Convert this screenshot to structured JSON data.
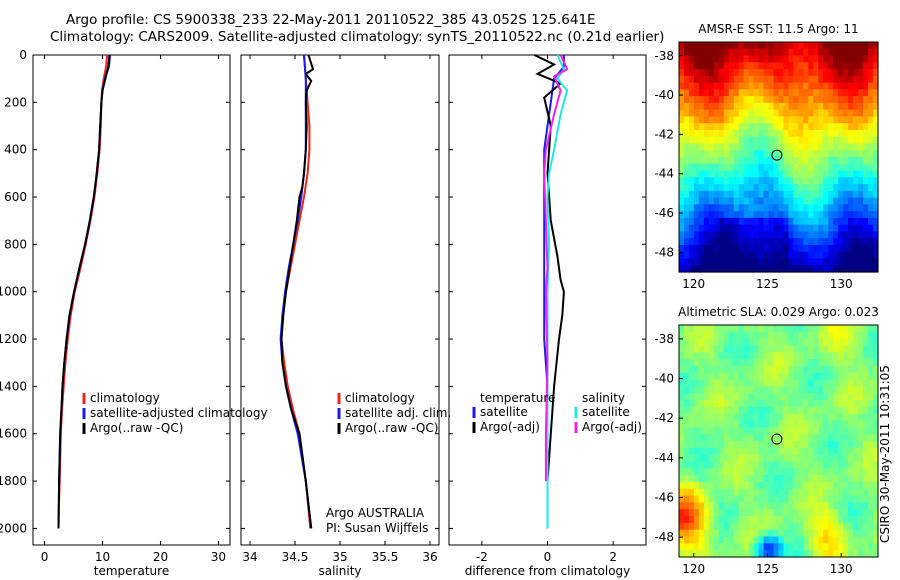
{
  "header": {
    "line1": "Argo profile: CS 5900338_233 22-May-2011 20110522_385 43.052S 125.641E",
    "line2": "Climatology: CARS2009. Satellite-adjusted climatology: synTS_20110522.nc (0.21d earlier)"
  },
  "side_label": "CSIRO 30-May-2011 10:31:05",
  "colors": {
    "red": "#e8261c",
    "blue": "#1a1aee",
    "black": "#000000",
    "cyan": "#22e6e6",
    "magenta": "#ee22ee"
  },
  "chart_data": [
    {
      "type": "line",
      "name": "temperature-profile",
      "xlabel": "temperature",
      "xlim": [
        -2,
        32
      ],
      "ylim": [
        0,
        2070
      ],
      "y_reversed": true,
      "xticks": [
        0,
        10,
        20,
        30
      ],
      "yticks": [
        0,
        200,
        400,
        600,
        800,
        1000,
        1200,
        1400,
        1600,
        1800,
        2000
      ],
      "series": [
        {
          "name": "climatology",
          "color": "red",
          "x": [
            10.8,
            10.6,
            10.2,
            9.9,
            9.8,
            9.7,
            9.5,
            9.1,
            8.6,
            7.9,
            7.1,
            6.2,
            5.2,
            4.5,
            4.0,
            3.6,
            3.3,
            3.0,
            2.8,
            2.6,
            2.5
          ],
          "y": [
            0,
            50,
            100,
            150,
            200,
            300,
            400,
            500,
            600,
            700,
            800,
            900,
            1000,
            1100,
            1200,
            1300,
            1400,
            1500,
            1600,
            1800,
            1880
          ]
        },
        {
          "name": "satellite-adjusted climatology",
          "color": "blue",
          "x": [
            11.3,
            11.1,
            10.4,
            10.0,
            9.8,
            9.6,
            9.4,
            9.0,
            8.5,
            7.8,
            7.0,
            6.0,
            5.1,
            4.3,
            3.8,
            3.4,
            3.1,
            2.9,
            2.7,
            2.5,
            2.4
          ],
          "y": [
            0,
            50,
            100,
            150,
            200,
            300,
            400,
            500,
            600,
            700,
            800,
            900,
            1000,
            1100,
            1200,
            1300,
            1400,
            1500,
            1600,
            1800,
            2000
          ]
        },
        {
          "name": "Argo(..raw -QC)",
          "color": "black",
          "x": [
            11.2,
            11.0,
            10.5,
            10.0,
            9.8,
            9.6,
            9.4,
            9.0,
            8.5,
            7.8,
            7.0,
            6.0,
            5.1,
            4.3,
            3.8,
            3.4,
            3.1,
            2.9,
            2.7,
            2.5,
            2.4
          ],
          "y": [
            0,
            50,
            100,
            150,
            200,
            300,
            400,
            500,
            600,
            700,
            800,
            900,
            1000,
            1100,
            1200,
            1300,
            1400,
            1500,
            1600,
            1800,
            2000
          ]
        }
      ],
      "legend": [
        "climatology",
        "satellite-adjusted climatology",
        "Argo(..raw -QC)"
      ]
    },
    {
      "type": "line",
      "name": "salinity-profile",
      "xlabel": "salinity",
      "xlim": [
        33.9,
        36.1
      ],
      "ylim": [
        0,
        2070
      ],
      "y_reversed": true,
      "xticks": [
        34,
        34.5,
        35,
        35.5,
        36
      ],
      "series": [
        {
          "name": "climatology",
          "color": "red",
          "x": [
            34.6,
            34.61,
            34.62,
            34.64,
            34.66,
            34.66,
            34.64,
            34.6,
            34.55,
            34.5,
            34.45,
            34.4,
            34.36,
            34.35,
            34.38,
            34.42,
            34.48,
            34.55,
            34.62,
            34.67
          ],
          "y": [
            0,
            50,
            100,
            200,
            300,
            400,
            500,
            600,
            700,
            800,
            900,
            1000,
            1100,
            1200,
            1300,
            1400,
            1500,
            1600,
            1800,
            2000
          ]
        },
        {
          "name": "satellite adj. clim.",
          "color": "blue",
          "x": [
            34.6,
            34.61,
            34.62,
            34.62,
            34.62,
            34.62,
            34.6,
            34.57,
            34.53,
            34.48,
            34.43,
            34.39,
            34.36,
            34.34,
            34.36,
            34.4,
            34.46,
            34.53,
            34.62,
            34.68
          ],
          "y": [
            0,
            50,
            100,
            200,
            300,
            400,
            500,
            600,
            700,
            800,
            900,
            1000,
            1100,
            1200,
            1300,
            1400,
            1500,
            1600,
            1800,
            2000
          ]
        },
        {
          "name": "Argo(..raw -QC)",
          "color": "black",
          "x": [
            34.65,
            34.7,
            34.62,
            34.68,
            34.63,
            34.62,
            34.63,
            34.62,
            34.6,
            34.58,
            34.55,
            34.52,
            34.48,
            34.44,
            34.4,
            34.37,
            34.35,
            34.36,
            34.4,
            34.46,
            34.55,
            34.62,
            34.68
          ],
          "y": [
            0,
            60,
            80,
            110,
            150,
            200,
            300,
            400,
            500,
            560,
            600,
            700,
            800,
            900,
            1000,
            1100,
            1200,
            1300,
            1400,
            1500,
            1600,
            1800,
            2000
          ]
        }
      ],
      "legend": [
        "climatology",
        "satellite adj. clim.",
        "Argo(..raw -QC)"
      ],
      "annotation": [
        "Argo AUSTRALIA",
        "PI: Susan Wijffels"
      ]
    },
    {
      "type": "line",
      "name": "difference-profile",
      "xlabel": "difference from climatology",
      "xlim": [
        -3,
        3
      ],
      "ylim": [
        0,
        2070
      ],
      "y_reversed": true,
      "xticks": [
        -2,
        0,
        2
      ],
      "series": [
        {
          "name": "temperature satellite",
          "color": "blue",
          "x": [
            0.5,
            0.5,
            0.2,
            0.1,
            0.0,
            -0.1,
            -0.1,
            -0.1,
            -0.1,
            -0.1,
            0.0,
            0.0,
            0.0,
            0.0,
            0.0,
            0.0
          ],
          "y": [
            0,
            50,
            100,
            200,
            300,
            400,
            600,
            800,
            1000,
            1200,
            1400,
            1600,
            1800,
            1900,
            2000,
            2000
          ]
        },
        {
          "name": "temperature Argo(-adj)",
          "color": "black",
          "x": [
            -0.4,
            0.2,
            -0.3,
            0.4,
            -0.1,
            0.1,
            0.0,
            0.1,
            0.3,
            0.4,
            0.5,
            0.45,
            0.35,
            0.2,
            0.1,
            0.0,
            0.0
          ],
          "y": [
            0,
            40,
            80,
            120,
            180,
            300,
            500,
            700,
            850,
            950,
            1000,
            1100,
            1200,
            1400,
            1600,
            1800,
            2000
          ]
        },
        {
          "name": "salinity satellite",
          "color": "cyan",
          "x": [
            0.3,
            0.5,
            0.3,
            0.6,
            0.4,
            0.2,
            0.05,
            0.0,
            0.05,
            0.0,
            0.0,
            0.0,
            0.0,
            0.0
          ],
          "y": [
            0,
            60,
            100,
            150,
            250,
            400,
            500,
            600,
            800,
            1000,
            1200,
            1500,
            1800,
            2000
          ]
        },
        {
          "name": "salinity Argo(-adj)",
          "color": "magenta",
          "x": [
            0.4,
            0.6,
            0.2,
            0.4,
            0.2,
            -0.05,
            -0.1,
            -0.05,
            0.0,
            -0.05,
            0.0,
            -0.05,
            -0.05
          ],
          "y": [
            0,
            60,
            90,
            150,
            250,
            400,
            500,
            700,
            900,
            1000,
            1300,
            1600,
            1800
          ]
        }
      ],
      "legend_header": [
        "temperature",
        "salinity"
      ],
      "legend": [
        "satellite",
        "Argo(-adj)",
        "satellite",
        "Argo(-adj)"
      ]
    },
    {
      "type": "heatmap",
      "name": "sst-map",
      "title": "AMSR-E SST: 11.5 Argo: 11",
      "xlim": [
        119,
        132.5
      ],
      "ylim": [
        -49,
        -37.3
      ],
      "xticks": [
        120,
        125,
        130
      ],
      "yticks": [
        -38,
        -40,
        -42,
        -44,
        -46,
        -48
      ],
      "marker": {
        "lon": 125.641,
        "lat": -43.052
      }
    },
    {
      "type": "heatmap",
      "name": "sla-map",
      "title": "Altimetric SLA: 0.029 Argo: 0.023",
      "xlim": [
        119,
        132.5
      ],
      "ylim": [
        -49,
        -37.3
      ],
      "xticks": [
        120,
        125,
        130
      ],
      "yticks": [
        -38,
        -40,
        -42,
        -44,
        -46,
        -48
      ],
      "marker": {
        "lon": 125.641,
        "lat": -43.052
      }
    }
  ]
}
